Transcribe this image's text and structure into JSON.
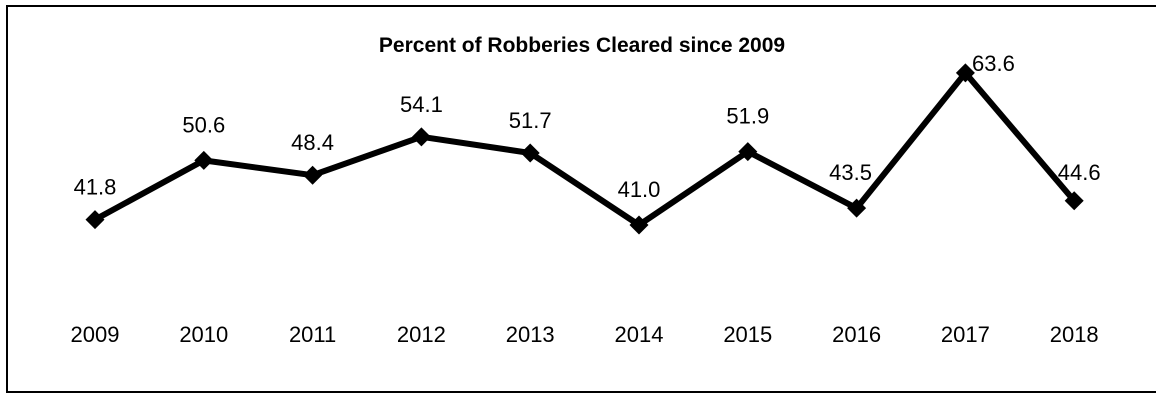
{
  "chart_data": {
    "type": "line",
    "title": "Percent of Robberies Cleared since 2009",
    "xlabel": "",
    "ylabel": "",
    "categories": [
      "2009",
      "2010",
      "2011",
      "2012",
      "2013",
      "2014",
      "2015",
      "2016",
      "2017",
      "2018"
    ],
    "series": [
      {
        "values": [
          41.8,
          50.6,
          48.4,
          54.1,
          51.7,
          41.0,
          51.9,
          43.5,
          63.6,
          44.6
        ],
        "labels": [
          "41.8",
          "50.6",
          "48.4",
          "54.1",
          "51.7",
          "41.0",
          "51.9",
          "43.5",
          "63.6",
          "44.6"
        ],
        "color": "#000000",
        "marker": "diamond"
      }
    ],
    "grid": false,
    "legend": "none"
  }
}
